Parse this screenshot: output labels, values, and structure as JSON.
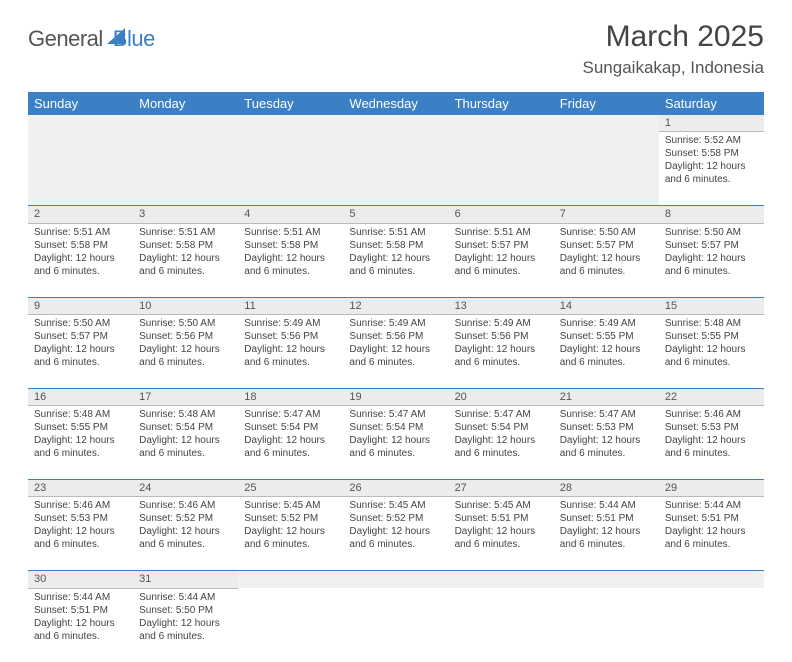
{
  "logo": {
    "part1": "General",
    "part2": "Blue"
  },
  "title": "March 2025",
  "subtitle": "Sungaikakap, Indonesia",
  "dayHeaders": [
    "Sunday",
    "Monday",
    "Tuesday",
    "Wednesday",
    "Thursday",
    "Friday",
    "Saturday"
  ],
  "colors": {
    "accent": "#3b7fc4",
    "row_alt": "#ececec"
  },
  "weeks": [
    {
      "nums": [
        "",
        "",
        "",
        "",
        "",
        "",
        "1"
      ],
      "cells": [
        null,
        null,
        null,
        null,
        null,
        null,
        {
          "sunrise": "Sunrise: 5:52 AM",
          "sunset": "Sunset: 5:58 PM",
          "day1": "Daylight: 12 hours",
          "day2": "and 6 minutes."
        }
      ]
    },
    {
      "nums": [
        "2",
        "3",
        "4",
        "5",
        "6",
        "7",
        "8"
      ],
      "cells": [
        {
          "sunrise": "Sunrise: 5:51 AM",
          "sunset": "Sunset: 5:58 PM",
          "day1": "Daylight: 12 hours",
          "day2": "and 6 minutes."
        },
        {
          "sunrise": "Sunrise: 5:51 AM",
          "sunset": "Sunset: 5:58 PM",
          "day1": "Daylight: 12 hours",
          "day2": "and 6 minutes."
        },
        {
          "sunrise": "Sunrise: 5:51 AM",
          "sunset": "Sunset: 5:58 PM",
          "day1": "Daylight: 12 hours",
          "day2": "and 6 minutes."
        },
        {
          "sunrise": "Sunrise: 5:51 AM",
          "sunset": "Sunset: 5:58 PM",
          "day1": "Daylight: 12 hours",
          "day2": "and 6 minutes."
        },
        {
          "sunrise": "Sunrise: 5:51 AM",
          "sunset": "Sunset: 5:57 PM",
          "day1": "Daylight: 12 hours",
          "day2": "and 6 minutes."
        },
        {
          "sunrise": "Sunrise: 5:50 AM",
          "sunset": "Sunset: 5:57 PM",
          "day1": "Daylight: 12 hours",
          "day2": "and 6 minutes."
        },
        {
          "sunrise": "Sunrise: 5:50 AM",
          "sunset": "Sunset: 5:57 PM",
          "day1": "Daylight: 12 hours",
          "day2": "and 6 minutes."
        }
      ]
    },
    {
      "nums": [
        "9",
        "10",
        "11",
        "12",
        "13",
        "14",
        "15"
      ],
      "cells": [
        {
          "sunrise": "Sunrise: 5:50 AM",
          "sunset": "Sunset: 5:57 PM",
          "day1": "Daylight: 12 hours",
          "day2": "and 6 minutes."
        },
        {
          "sunrise": "Sunrise: 5:50 AM",
          "sunset": "Sunset: 5:56 PM",
          "day1": "Daylight: 12 hours",
          "day2": "and 6 minutes."
        },
        {
          "sunrise": "Sunrise: 5:49 AM",
          "sunset": "Sunset: 5:56 PM",
          "day1": "Daylight: 12 hours",
          "day2": "and 6 minutes."
        },
        {
          "sunrise": "Sunrise: 5:49 AM",
          "sunset": "Sunset: 5:56 PM",
          "day1": "Daylight: 12 hours",
          "day2": "and 6 minutes."
        },
        {
          "sunrise": "Sunrise: 5:49 AM",
          "sunset": "Sunset: 5:56 PM",
          "day1": "Daylight: 12 hours",
          "day2": "and 6 minutes."
        },
        {
          "sunrise": "Sunrise: 5:49 AM",
          "sunset": "Sunset: 5:55 PM",
          "day1": "Daylight: 12 hours",
          "day2": "and 6 minutes."
        },
        {
          "sunrise": "Sunrise: 5:48 AM",
          "sunset": "Sunset: 5:55 PM",
          "day1": "Daylight: 12 hours",
          "day2": "and 6 minutes."
        }
      ]
    },
    {
      "nums": [
        "16",
        "17",
        "18",
        "19",
        "20",
        "21",
        "22"
      ],
      "cells": [
        {
          "sunrise": "Sunrise: 5:48 AM",
          "sunset": "Sunset: 5:55 PM",
          "day1": "Daylight: 12 hours",
          "day2": "and 6 minutes."
        },
        {
          "sunrise": "Sunrise: 5:48 AM",
          "sunset": "Sunset: 5:54 PM",
          "day1": "Daylight: 12 hours",
          "day2": "and 6 minutes."
        },
        {
          "sunrise": "Sunrise: 5:47 AM",
          "sunset": "Sunset: 5:54 PM",
          "day1": "Daylight: 12 hours",
          "day2": "and 6 minutes."
        },
        {
          "sunrise": "Sunrise: 5:47 AM",
          "sunset": "Sunset: 5:54 PM",
          "day1": "Daylight: 12 hours",
          "day2": "and 6 minutes."
        },
        {
          "sunrise": "Sunrise: 5:47 AM",
          "sunset": "Sunset: 5:54 PM",
          "day1": "Daylight: 12 hours",
          "day2": "and 6 minutes."
        },
        {
          "sunrise": "Sunrise: 5:47 AM",
          "sunset": "Sunset: 5:53 PM",
          "day1": "Daylight: 12 hours",
          "day2": "and 6 minutes."
        },
        {
          "sunrise": "Sunrise: 5:46 AM",
          "sunset": "Sunset: 5:53 PM",
          "day1": "Daylight: 12 hours",
          "day2": "and 6 minutes."
        }
      ]
    },
    {
      "nums": [
        "23",
        "24",
        "25",
        "26",
        "27",
        "28",
        "29"
      ],
      "cells": [
        {
          "sunrise": "Sunrise: 5:46 AM",
          "sunset": "Sunset: 5:53 PM",
          "day1": "Daylight: 12 hours",
          "day2": "and 6 minutes."
        },
        {
          "sunrise": "Sunrise: 5:46 AM",
          "sunset": "Sunset: 5:52 PM",
          "day1": "Daylight: 12 hours",
          "day2": "and 6 minutes."
        },
        {
          "sunrise": "Sunrise: 5:45 AM",
          "sunset": "Sunset: 5:52 PM",
          "day1": "Daylight: 12 hours",
          "day2": "and 6 minutes."
        },
        {
          "sunrise": "Sunrise: 5:45 AM",
          "sunset": "Sunset: 5:52 PM",
          "day1": "Daylight: 12 hours",
          "day2": "and 6 minutes."
        },
        {
          "sunrise": "Sunrise: 5:45 AM",
          "sunset": "Sunset: 5:51 PM",
          "day1": "Daylight: 12 hours",
          "day2": "and 6 minutes."
        },
        {
          "sunrise": "Sunrise: 5:44 AM",
          "sunset": "Sunset: 5:51 PM",
          "day1": "Daylight: 12 hours",
          "day2": "and 6 minutes."
        },
        {
          "sunrise": "Sunrise: 5:44 AM",
          "sunset": "Sunset: 5:51 PM",
          "day1": "Daylight: 12 hours",
          "day2": "and 6 minutes."
        }
      ]
    },
    {
      "nums": [
        "30",
        "31",
        "",
        "",
        "",
        "",
        ""
      ],
      "cells": [
        {
          "sunrise": "Sunrise: 5:44 AM",
          "sunset": "Sunset: 5:51 PM",
          "day1": "Daylight: 12 hours",
          "day2": "and 6 minutes."
        },
        {
          "sunrise": "Sunrise: 5:44 AM",
          "sunset": "Sunset: 5:50 PM",
          "day1": "Daylight: 12 hours",
          "day2": "and 6 minutes."
        },
        null,
        null,
        null,
        null,
        null
      ]
    }
  ]
}
